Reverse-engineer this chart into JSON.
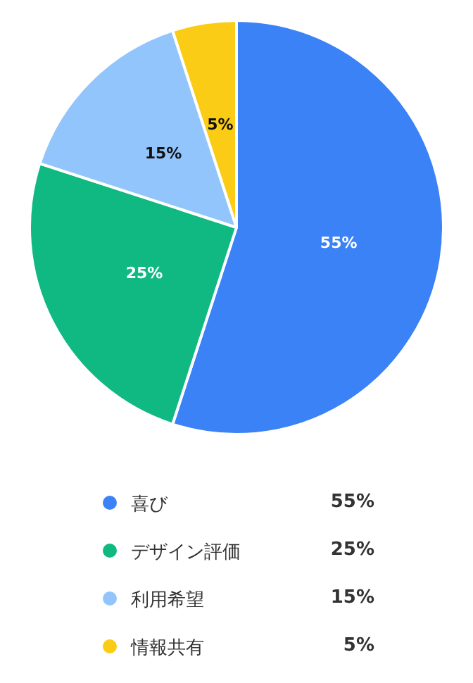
{
  "chart_data": {
    "type": "pie",
    "categories": [
      "喜び",
      "デザイン評価",
      "利用希望",
      "情報共有"
    ],
    "values": [
      55,
      25,
      15,
      5
    ],
    "colors": [
      "#3b82f6",
      "#10b981",
      "#93c5fd",
      "#facc15"
    ],
    "value_labels": [
      "55%",
      "25%",
      "15%",
      "5%"
    ],
    "legend": "bottom"
  }
}
